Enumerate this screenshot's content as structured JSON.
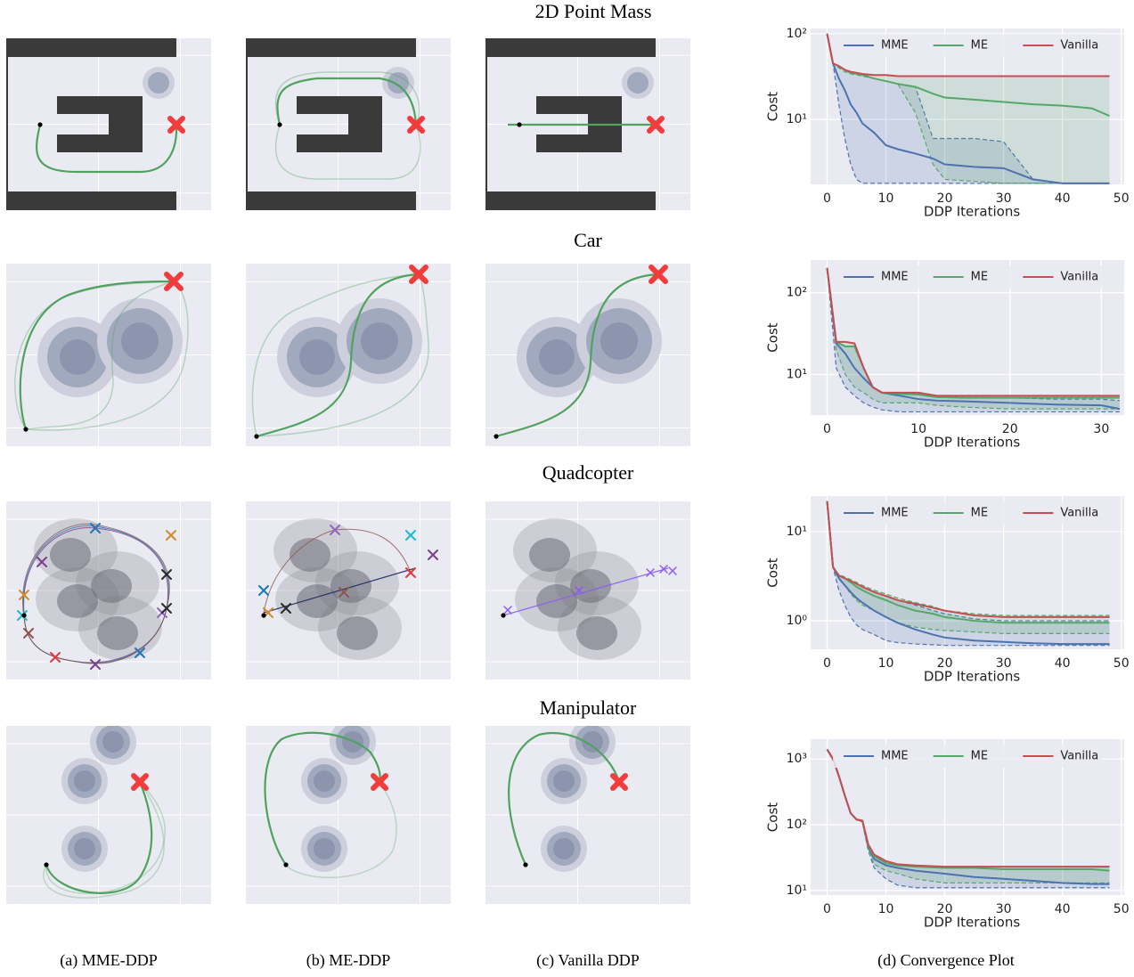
{
  "row_titles": [
    "2D Point Mass",
    "Car",
    "Quadcopter",
    "Manipulator"
  ],
  "captions": [
    "(a) MME-DDP",
    "(b) ME-DDP",
    "(c) Vanilla DDP",
    "(d) Convergence Plot"
  ],
  "chart_data": [
    {
      "type": "line",
      "xlabel": "DDP Iterations",
      "ylabel": "Cost",
      "ylog": true,
      "grid": true,
      "legend": "upper center",
      "x": [
        0,
        1,
        2,
        3,
        4,
        5,
        6,
        8,
        10,
        12,
        15,
        18,
        20,
        25,
        30,
        35,
        40,
        45,
        48
      ],
      "xlim": [
        -2.8,
        50.5
      ],
      "xticks": [
        0,
        10,
        20,
        30,
        40,
        50
      ],
      "ylim": [
        1.75,
        115
      ],
      "yticks": [
        {
          "value": 10,
          "label": "10¹"
        },
        {
          "value": 100,
          "label": "10²"
        }
      ],
      "series": [
        {
          "name": "MME",
          "color": "#4c72b0",
          "values": [
            100,
            45,
            30,
            22,
            15,
            12,
            9,
            7,
            5,
            4.5,
            4,
            3.5,
            3,
            2.8,
            2.7,
            2,
            1.8,
            1.8,
            1.8
          ],
          "min": [
            100,
            45,
            15,
            6,
            3,
            2,
            1.8,
            1.8,
            1.8,
            1.8,
            1.8,
            1.8,
            1.8,
            1.8,
            1.8,
            1.8,
            1.8,
            1.8,
            1.8
          ],
          "max": [
            100,
            45,
            40,
            38,
            36,
            35,
            34,
            30,
            28,
            26,
            24,
            6,
            6,
            6,
            5.5,
            2,
            1.8,
            1.8,
            1.8
          ]
        },
        {
          "name": "ME",
          "color": "#55a868",
          "values": [
            100,
            45,
            42,
            38,
            35,
            34,
            33,
            30,
            28,
            26,
            24,
            20,
            18,
            17,
            16,
            15,
            14.5,
            13.5,
            11
          ],
          "min": [
            100,
            45,
            40,
            36,
            34,
            33,
            32,
            30,
            28,
            26,
            12,
            3,
            2,
            1.9,
            1.8,
            1.8,
            1.8,
            1.8,
            1.8
          ],
          "max": [
            100,
            45,
            42,
            38,
            36,
            35,
            34,
            33,
            33,
            32,
            32,
            32,
            32,
            32,
            32,
            32,
            32,
            32,
            32
          ]
        },
        {
          "name": "Vanilla",
          "color": "#c44e52",
          "values": [
            100,
            45,
            42,
            38,
            36,
            35,
            34,
            33,
            33,
            32,
            32,
            32,
            32,
            32,
            32,
            32,
            32,
            32,
            32
          ]
        }
      ]
    },
    {
      "type": "line",
      "xlabel": "DDP Iterations",
      "ylabel": "Cost",
      "ylog": true,
      "grid": true,
      "legend": "upper center",
      "x": [
        0,
        1,
        2,
        3,
        4,
        5,
        6,
        8,
        10,
        12,
        15,
        20,
        25,
        30,
        32
      ],
      "xlim": [
        -1.8,
        32.5
      ],
      "xticks": [
        0,
        10,
        20,
        30
      ],
      "ylim": [
        3.2,
        250
      ],
      "yticks": [
        {
          "value": 10,
          "label": "10¹"
        },
        {
          "value": 100,
          "label": "10²"
        }
      ],
      "series": [
        {
          "name": "MME",
          "color": "#4c72b0",
          "values": [
            200,
            24,
            18,
            12,
            9,
            7,
            6,
            5.5,
            5,
            4.8,
            4.7,
            4.5,
            4.3,
            4.2,
            3.8
          ],
          "min": [
            200,
            12,
            7,
            5.5,
            4.5,
            4,
            3.7,
            3.5,
            3.5,
            3.5,
            3.5,
            3.5,
            3.5,
            3.5,
            3.5
          ],
          "max": [
            200,
            25,
            22,
            22,
            12,
            7,
            6,
            6,
            5.8,
            5.5,
            5.3,
            5.2,
            5,
            5,
            4.8
          ]
        },
        {
          "name": "ME",
          "color": "#55a868",
          "values": [
            200,
            25,
            22,
            22,
            12,
            7,
            6,
            5.8,
            5.7,
            5.3,
            5.2,
            5.2,
            5.2,
            5.2,
            5.2
          ],
          "min": [
            200,
            20,
            10,
            7,
            6,
            5,
            4.5,
            4.5,
            4.5,
            4.2,
            4,
            3.8,
            3.8,
            3.8,
            3.8
          ],
          "max": [
            200,
            25,
            25,
            24,
            12,
            7,
            6,
            6,
            6,
            5.5,
            5.5,
            5.5,
            5.5,
            5.5,
            5.5
          ]
        },
        {
          "name": "Vanilla",
          "color": "#c44e52",
          "values": [
            200,
            25,
            25,
            24,
            12,
            7,
            6,
            6,
            6,
            5.5,
            5.5,
            5.5,
            5.5,
            5.5,
            5.5
          ]
        }
      ]
    },
    {
      "type": "line",
      "xlabel": "DDP Iterations",
      "ylabel": "Cost",
      "ylog": true,
      "grid": true,
      "legend": "upper center",
      "x": [
        0,
        1,
        2,
        3,
        4,
        5,
        6,
        8,
        10,
        12,
        15,
        18,
        20,
        25,
        30,
        35,
        40,
        45,
        48
      ],
      "xlim": [
        -2.8,
        50.5
      ],
      "xticks": [
        0,
        10,
        20,
        30,
        40,
        50
      ],
      "ylim": [
        0.48,
        25
      ],
      "yticks": [
        {
          "value": 1,
          "label": "10⁰"
        },
        {
          "value": 10,
          "label": "10¹"
        }
      ],
      "series": [
        {
          "name": "MME",
          "color": "#4c72b0",
          "values": [
            22,
            4,
            3,
            2.5,
            2.1,
            1.8,
            1.6,
            1.3,
            1.1,
            0.95,
            0.8,
            0.7,
            0.65,
            0.6,
            0.58,
            0.56,
            0.55,
            0.55,
            0.55
          ],
          "min": [
            22,
            4,
            2.2,
            1.5,
            1.1,
            0.9,
            0.8,
            0.7,
            0.6,
            0.57,
            0.55,
            0.54,
            0.53,
            0.53,
            0.53,
            0.53,
            0.53,
            0.53,
            0.53
          ],
          "max": [
            22,
            4,
            3.2,
            3,
            2.8,
            2.6,
            2.4,
            2.1,
            1.9,
            1.7,
            1.5,
            1.3,
            1.2,
            1.05,
            1,
            1,
            1,
            1,
            1
          ]
        },
        {
          "name": "ME",
          "color": "#55a868",
          "values": [
            22,
            4,
            3.2,
            3,
            2.7,
            2.4,
            2.2,
            1.9,
            1.7,
            1.5,
            1.3,
            1.2,
            1.1,
            1,
            0.95,
            0.95,
            0.95,
            0.95,
            0.95
          ],
          "min": [
            22,
            4,
            3,
            2.5,
            2,
            1.7,
            1.5,
            1.3,
            1.1,
            0.95,
            0.85,
            0.8,
            0.78,
            0.75,
            0.72,
            0.72,
            0.72,
            0.72,
            0.72
          ],
          "max": [
            22,
            4,
            3.3,
            3.1,
            2.9,
            2.7,
            2.5,
            2.2,
            2,
            1.8,
            1.6,
            1.45,
            1.3,
            1.2,
            1.15,
            1.15,
            1.15,
            1.15,
            1.15
          ]
        },
        {
          "name": "Vanilla",
          "color": "#c44e52",
          "values": [
            22,
            4,
            3.2,
            3,
            2.8,
            2.6,
            2.4,
            2.1,
            1.9,
            1.7,
            1.55,
            1.4,
            1.3,
            1.15,
            1.1,
            1.1,
            1.1,
            1.1,
            1.1
          ]
        }
      ]
    },
    {
      "type": "line",
      "xlabel": "DDP Iterations",
      "ylabel": "Cost",
      "ylog": true,
      "grid": true,
      "legend": "upper center",
      "x": [
        0,
        1,
        2,
        3,
        4,
        5,
        6,
        7,
        8,
        10,
        12,
        15,
        20,
        25,
        30,
        35,
        40,
        45,
        48
      ],
      "xlim": [
        -2.8,
        50.5
      ],
      "xticks": [
        0,
        10,
        20,
        30,
        40,
        50
      ],
      "ylim": [
        8.5,
        2000
      ],
      "yticks": [
        {
          "value": 10,
          "label": "10¹"
        },
        {
          "value": 100,
          "label": "10²"
        },
        {
          "value": 1000,
          "label": "10³"
        }
      ],
      "series": [
        {
          "name": "MME",
          "color": "#4c72b0",
          "values": [
            1400,
            1000,
            550,
            280,
            150,
            120,
            115,
            45,
            30,
            24,
            22,
            20,
            18,
            16,
            15,
            14,
            13,
            12.5,
            12.5
          ],
          "min": [
            1400,
            1000,
            550,
            280,
            150,
            120,
            110,
            40,
            22,
            15,
            12,
            11,
            11,
            11,
            11,
            11,
            11,
            11,
            11
          ],
          "max": [
            1400,
            1000,
            550,
            280,
            150,
            120,
            115,
            50,
            35,
            28,
            25,
            24,
            23,
            23,
            23,
            23,
            23,
            23,
            23
          ]
        },
        {
          "name": "ME",
          "color": "#55a868",
          "values": [
            1400,
            1000,
            550,
            280,
            150,
            120,
            115,
            48,
            33,
            26,
            24,
            23,
            22,
            22,
            21,
            21,
            21,
            21,
            20
          ],
          "min": [
            1400,
            1000,
            550,
            280,
            150,
            120,
            110,
            40,
            25,
            20,
            18,
            15,
            13,
            13,
            13,
            13,
            13,
            13,
            13
          ],
          "max": [
            1400,
            1000,
            550,
            280,
            150,
            120,
            115,
            50,
            35,
            28,
            25,
            24,
            23,
            23,
            23,
            23,
            23,
            23,
            23
          ]
        },
        {
          "name": "Vanilla",
          "color": "#c44e52",
          "values": [
            1400,
            1000,
            550,
            280,
            150,
            120,
            115,
            50,
            35,
            28,
            25,
            24,
            23,
            23,
            23,
            23,
            23,
            23,
            23
          ]
        }
      ]
    }
  ]
}
